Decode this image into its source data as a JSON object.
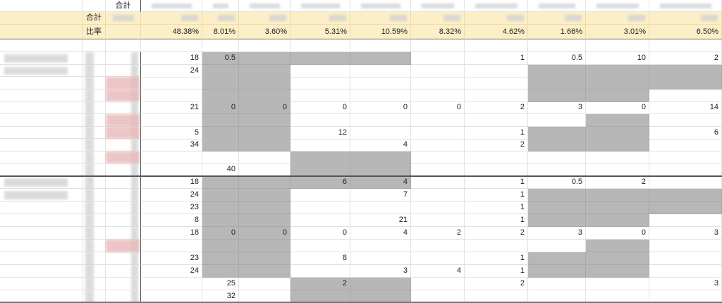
{
  "header": {
    "total_label": "合計"
  },
  "summary": {
    "total_label": "合計",
    "ratio_label": "比率",
    "ratios": [
      "48.38%",
      "8.01%",
      "3.60%",
      "5.31%",
      "10.59%",
      "8.32%",
      "4.62%",
      "1.66%",
      "3.01%",
      "6.50%"
    ],
    "band_color": "#fcefc7"
  },
  "colors": {
    "shaded": "#b7b7b7",
    "highlight": "#e8b9b9"
  },
  "rows": [
    {
      "values": [
        "18",
        "0.5",
        "",
        "",
        "",
        "",
        "1",
        "0.5",
        "10",
        "2"
      ],
      "shaded": [
        1,
        2,
        3,
        4
      ]
    },
    {
      "values": [
        "24",
        "",
        "",
        "",
        "",
        "",
        "",
        "",
        "",
        ""
      ],
      "shaded": [
        1,
        2,
        7,
        8,
        9
      ]
    },
    {
      "values": [
        "",
        "",
        "",
        "",
        "",
        "",
        "",
        "",
        "",
        ""
      ],
      "shaded": [
        1,
        2,
        7,
        8,
        9
      ]
    },
    {
      "values": [
        "",
        "",
        "",
        "",
        "",
        "",
        "",
        "",
        "",
        ""
      ],
      "shaded": [
        1,
        2,
        7,
        8
      ]
    },
    {
      "values": [
        "21",
        "0",
        "0",
        "0",
        "0",
        "0",
        "2",
        "3",
        "0",
        "14"
      ],
      "shaded": [
        1,
        2
      ]
    },
    {
      "values": [
        "",
        "",
        "",
        "",
        "",
        "",
        "",
        "",
        "",
        ""
      ],
      "shaded": [
        1,
        2,
        8
      ]
    },
    {
      "values": [
        "5",
        "",
        "",
        "12",
        "",
        "",
        "1",
        "",
        "",
        "6"
      ],
      "shaded": [
        1,
        2,
        7,
        8
      ]
    },
    {
      "values": [
        "34",
        "",
        "",
        "",
        "4",
        "",
        "2",
        "",
        "",
        ""
      ],
      "shaded": [
        1,
        2,
        7,
        8
      ]
    },
    {
      "values": [
        "",
        "",
        "",
        "",
        "",
        "",
        "",
        "",
        "",
        ""
      ],
      "shaded": [
        3,
        4
      ]
    },
    {
      "values": [
        "",
        "40",
        "",
        "",
        "",
        "",
        "",
        "",
        "",
        ""
      ],
      "shaded": [
        3,
        4
      ]
    },
    {
      "values": [
        "18",
        "",
        "",
        "6",
        "4",
        "",
        "1",
        "0.5",
        "2",
        ""
      ],
      "shaded": [
        1,
        2,
        3,
        4
      ]
    },
    {
      "values": [
        "24",
        "",
        "",
        "",
        "7",
        "",
        "1",
        "",
        "",
        ""
      ],
      "shaded": [
        1,
        2,
        7,
        8,
        9
      ]
    },
    {
      "values": [
        "23",
        "",
        "",
        "",
        "",
        "",
        "1",
        "",
        "",
        ""
      ],
      "shaded": [
        1,
        2,
        7,
        8,
        9
      ]
    },
    {
      "values": [
        "8",
        "",
        "",
        "",
        "21",
        "",
        "1",
        "",
        "",
        ""
      ],
      "shaded": [
        1,
        2,
        7,
        8
      ]
    },
    {
      "values": [
        "18",
        "0",
        "0",
        "0",
        "4",
        "2",
        "2",
        "3",
        "0",
        "3"
      ],
      "shaded": [
        1,
        2
      ]
    },
    {
      "values": [
        "",
        "",
        "",
        "",
        "",
        "",
        "",
        "",
        "",
        ""
      ],
      "shaded": [
        1,
        2,
        8
      ]
    },
    {
      "values": [
        "23",
        "",
        "",
        "8",
        "",
        "",
        "1",
        "",
        "",
        ""
      ],
      "shaded": [
        1,
        2,
        7,
        8
      ]
    },
    {
      "values": [
        "24",
        "",
        "",
        "",
        "3",
        "4",
        "1",
        "",
        "",
        ""
      ],
      "shaded": [
        1,
        2,
        7,
        8
      ]
    },
    {
      "values": [
        "",
        "25",
        "",
        "2",
        "",
        "",
        "2",
        "",
        "",
        "3"
      ],
      "shaded": [
        3,
        4
      ]
    },
    {
      "values": [
        "",
        "32",
        "",
        "",
        "",
        "",
        "",
        "",
        "",
        ""
      ],
      "shaded": [
        3,
        4
      ]
    }
  ]
}
